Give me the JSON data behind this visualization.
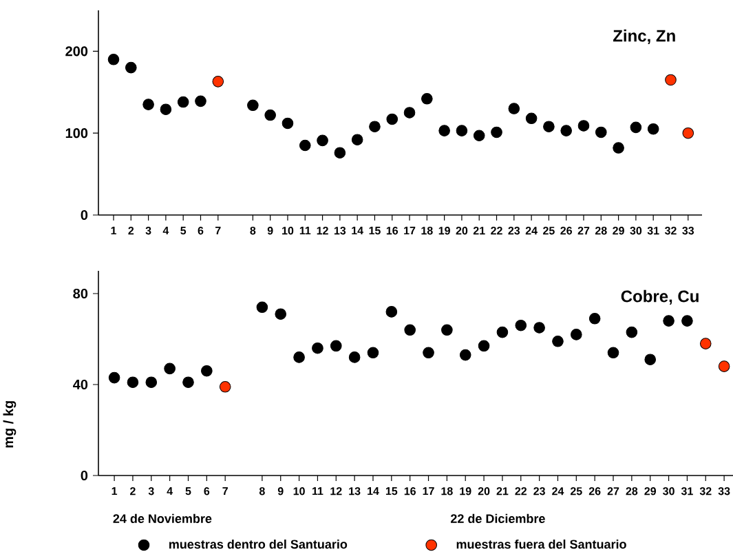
{
  "chart_data": [
    {
      "type": "scatter",
      "title": "Zinc, Zn",
      "categories": [
        "1",
        "2",
        "3",
        "4",
        "5",
        "6",
        "7",
        null,
        "8",
        "9",
        "10",
        "11",
        "12",
        "13",
        "14",
        "15",
        "16",
        "17",
        "18",
        "19",
        "20",
        "21",
        "22",
        "23",
        "24",
        "25",
        "26",
        "27",
        "28",
        "29",
        "30",
        "31",
        "32",
        "33"
      ],
      "series": [
        {
          "color": "#000000",
          "values": [
            190,
            180,
            135,
            129,
            138,
            139,
            null,
            null,
            134,
            122,
            112,
            85,
            91,
            76,
            92,
            108,
            117,
            125,
            142,
            103,
            103,
            97,
            101,
            130,
            118,
            108,
            103,
            109,
            101,
            82,
            107,
            105,
            null,
            null
          ]
        },
        {
          "color": "#ff3300",
          "values": [
            null,
            null,
            null,
            null,
            null,
            null,
            163,
            null,
            null,
            null,
            null,
            null,
            null,
            null,
            null,
            null,
            null,
            null,
            null,
            null,
            null,
            null,
            null,
            null,
            null,
            null,
            null,
            null,
            null,
            null,
            null,
            null,
            165,
            100
          ]
        }
      ],
      "ylim": [
        0,
        250
      ],
      "yticks": [
        0,
        100,
        200
      ],
      "marker": "circle",
      "grid": false,
      "legend": false
    },
    {
      "type": "scatter",
      "title": "Cobre, Cu",
      "ylabel": "mg / kg",
      "categories": [
        "1",
        "2",
        "3",
        "4",
        "5",
        "6",
        "7",
        null,
        "8",
        "9",
        "10",
        "11",
        "12",
        "13",
        "14",
        "15",
        "16",
        "17",
        "18",
        "19",
        "20",
        "21",
        "22",
        "23",
        "24",
        "25",
        "26",
        "27",
        "28",
        "29",
        "30",
        "31",
        "32",
        "33"
      ],
      "series": [
        {
          "name": "muestras dentro del Santuario",
          "color": "#000000",
          "values": [
            43,
            41,
            41,
            47,
            41,
            46,
            null,
            null,
            74,
            71,
            52,
            56,
            57,
            52,
            54,
            72,
            64,
            54,
            64,
            53,
            57,
            63,
            66,
            65,
            59,
            62,
            69,
            54,
            63,
            51,
            68,
            68,
            null,
            null
          ]
        },
        {
          "name": "muestras fuera del Santuario",
          "color": "#ff3300",
          "values": [
            null,
            null,
            null,
            null,
            null,
            null,
            39,
            null,
            null,
            null,
            null,
            null,
            null,
            null,
            null,
            null,
            null,
            null,
            null,
            null,
            null,
            null,
            null,
            null,
            null,
            null,
            null,
            null,
            null,
            null,
            null,
            null,
            58,
            48
          ]
        }
      ],
      "ylim": [
        0,
        90
      ],
      "yticks": [
        0,
        40,
        80
      ],
      "marker": "circle",
      "grid": false,
      "legend": "bottom",
      "annotations": [
        "24 de Noviembre",
        "22 de Diciembre"
      ]
    }
  ]
}
